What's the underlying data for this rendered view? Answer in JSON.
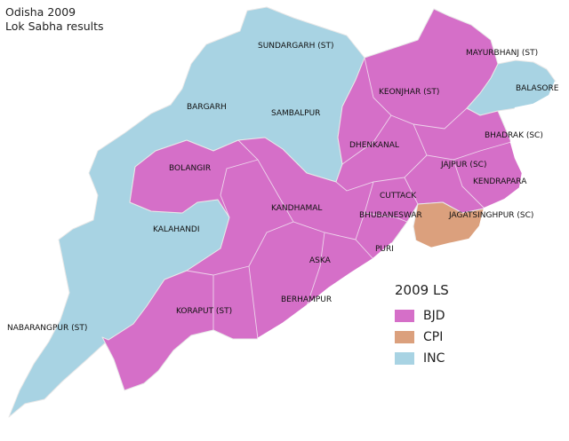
{
  "title": {
    "line1": "Odisha 2009",
    "line2": "Lok Sabha results"
  },
  "legend": {
    "title": "2009 LS",
    "items": [
      {
        "label": "BJD",
        "color": "#d56fc8"
      },
      {
        "label": "CPI",
        "color": "#dba07d"
      },
      {
        "label": "INC",
        "color": "#a8d3e3"
      }
    ]
  },
  "constituencies": [
    {
      "name": "SUNDARGARH (ST)",
      "party": "INC"
    },
    {
      "name": "MAYURBHANJ (ST)",
      "party": "BJD"
    },
    {
      "name": "BALASORE",
      "party": "INC"
    },
    {
      "name": "KEONJHAR (ST)",
      "party": "BJD"
    },
    {
      "name": "BARGARH",
      "party": "INC"
    },
    {
      "name": "SAMBALPUR",
      "party": "INC"
    },
    {
      "name": "BHADRAK (SC)",
      "party": "BJD"
    },
    {
      "name": "DHENKANAL",
      "party": "BJD"
    },
    {
      "name": "JAJPUR (SC)",
      "party": "BJD"
    },
    {
      "name": "BOLANGIR",
      "party": "BJD"
    },
    {
      "name": "KENDRAPARA",
      "party": "BJD"
    },
    {
      "name": "CUTTACK",
      "party": "BJD"
    },
    {
      "name": "KANDHAMAL",
      "party": "BJD"
    },
    {
      "name": "BHUBANESWAR",
      "party": "BJD"
    },
    {
      "name": "JAGATSINGHPUR (SC)",
      "party": "CPI"
    },
    {
      "name": "KALAHANDI",
      "party": "INC"
    },
    {
      "name": "PURI",
      "party": "BJD"
    },
    {
      "name": "ASKA",
      "party": "BJD"
    },
    {
      "name": "KORAPUT (ST)",
      "party": "BJD"
    },
    {
      "name": "BERHAMPUR",
      "party": "BJD"
    },
    {
      "name": "NABARANGPUR (ST)",
      "party": "INC"
    }
  ]
}
